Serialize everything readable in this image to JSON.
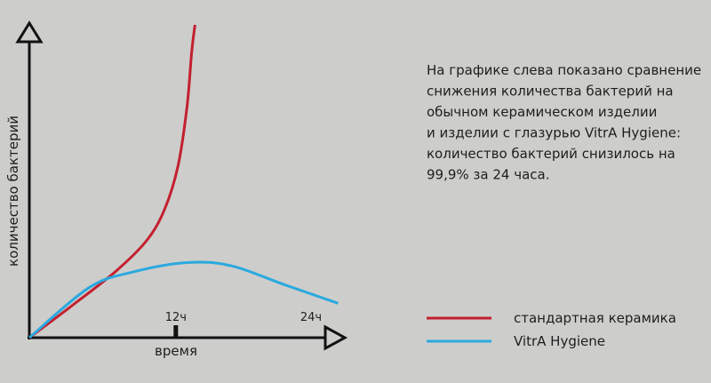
{
  "chart_data": {
    "type": "line",
    "ylabel": "количество бактерий",
    "xlabel": "время",
    "xlim": [
      -1,
      27
    ],
    "ylim": [
      0,
      100
    ],
    "xticks": [
      {
        "value": 12,
        "label": "12ч"
      },
      {
        "value": 24,
        "label": "24ч"
      }
    ],
    "series": [
      {
        "name": "стандартная керамика",
        "color": "#c3202f",
        "x": [
          -1,
          2.7,
          6.6,
          9.4,
          11,
          12.2,
          13,
          13.4,
          13.7
        ],
        "values": [
          0,
          10,
          21,
          31,
          41,
          55,
          74,
          91,
          100
        ]
      },
      {
        "name": "VitrA Hygiene",
        "color": "#2aa9df",
        "x": [
          -1,
          4.3,
          8.2,
          13,
          16.9,
          21.6,
          26.4
        ],
        "values": [
          0,
          16,
          21,
          24,
          23,
          17,
          11
        ]
      }
    ],
    "legend": "bottom-right",
    "description": [
      "На графике слева показано сравнение",
      "снижения количества бактерий на",
      "обычном керамическом изделии",
      "и  изделии с глазурью VitrA Hygiene:",
      "количество бактерий снизилось на",
      "99,9% за  24  часа."
    ]
  }
}
